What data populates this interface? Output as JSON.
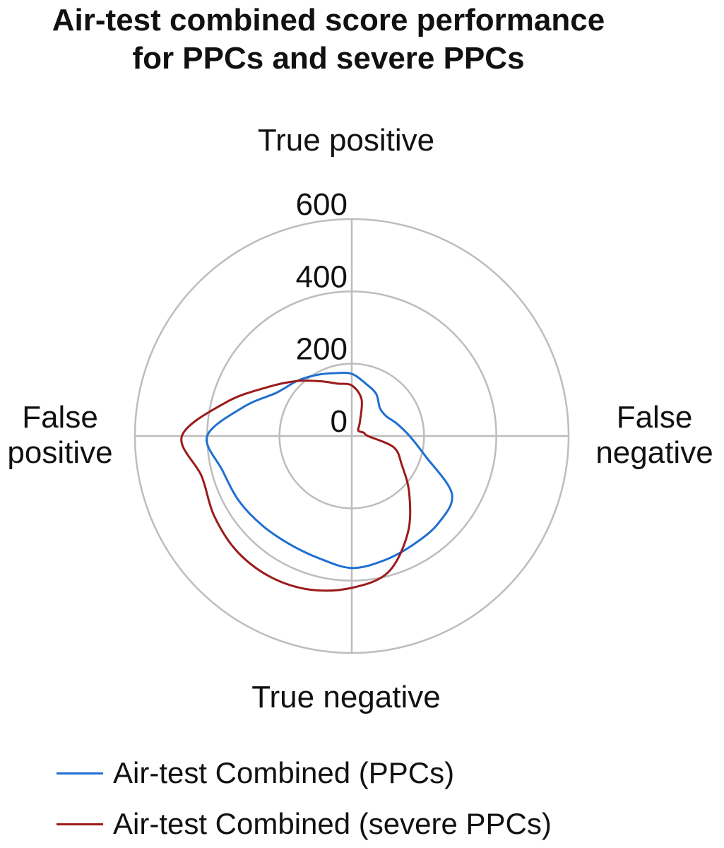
{
  "chart_data": {
    "type": "radar",
    "title_lines": [
      "Air-test combined score performance",
      "for PPCs and severe PPCs"
    ],
    "axes": [
      "True positive",
      "False negative",
      "True negative",
      "False positive"
    ],
    "radial_ticks": [
      "0",
      "200",
      "400",
      "600"
    ],
    "rlim": [
      0,
      600
    ],
    "grid": true,
    "legend_position": "bottom-left",
    "series": [
      {
        "name": "Air-test Combined (PPCs)",
        "color": "#1f6fd1",
        "points": [
          {
            "angle": 0,
            "value": 172
          },
          {
            "angle": 15,
            "value": 150
          },
          {
            "angle": 30,
            "value": 135
          },
          {
            "angle": 45,
            "value": 110
          },
          {
            "angle": 60,
            "value": 110
          },
          {
            "angle": 75,
            "value": 130
          },
          {
            "angle": 90,
            "value": 160
          },
          {
            "angle": 105,
            "value": 210
          },
          {
            "angle": 120,
            "value": 320
          },
          {
            "angle": 135,
            "value": 340
          },
          {
            "angle": 150,
            "value": 345
          },
          {
            "angle": 165,
            "value": 355
          },
          {
            "angle": 180,
            "value": 365
          },
          {
            "angle": 195,
            "value": 350
          },
          {
            "angle": 210,
            "value": 345
          },
          {
            "angle": 225,
            "value": 350
          },
          {
            "angle": 240,
            "value": 360
          },
          {
            "angle": 255,
            "value": 370
          },
          {
            "angle": 270,
            "value": 400
          },
          {
            "angle": 285,
            "value": 310
          },
          {
            "angle": 300,
            "value": 240
          },
          {
            "angle": 315,
            "value": 215
          },
          {
            "angle": 330,
            "value": 195
          },
          {
            "angle": 345,
            "value": 180
          }
        ]
      },
      {
        "name": "Air-test Combined (severe PPCs)",
        "color": "#9b1b1b",
        "points": [
          {
            "angle": 0,
            "value": 140
          },
          {
            "angle": 15,
            "value": 105
          },
          {
            "angle": 30,
            "value": 45
          },
          {
            "angle": 45,
            "value": 25
          },
          {
            "angle": 60,
            "value": 25
          },
          {
            "angle": 75,
            "value": 35
          },
          {
            "angle": 90,
            "value": 45
          },
          {
            "angle": 105,
            "value": 120
          },
          {
            "angle": 120,
            "value": 160
          },
          {
            "angle": 135,
            "value": 225
          },
          {
            "angle": 150,
            "value": 310
          },
          {
            "angle": 165,
            "value": 390
          },
          {
            "angle": 180,
            "value": 420
          },
          {
            "angle": 195,
            "value": 440
          },
          {
            "angle": 210,
            "value": 450
          },
          {
            "angle": 225,
            "value": 450
          },
          {
            "angle": 240,
            "value": 440
          },
          {
            "angle": 255,
            "value": 430
          },
          {
            "angle": 270,
            "value": 470
          },
          {
            "angle": 285,
            "value": 360
          },
          {
            "angle": 300,
            "value": 270
          },
          {
            "angle": 315,
            "value": 215
          },
          {
            "angle": 330,
            "value": 175
          },
          {
            "angle": 345,
            "value": 150
          }
        ]
      }
    ]
  }
}
